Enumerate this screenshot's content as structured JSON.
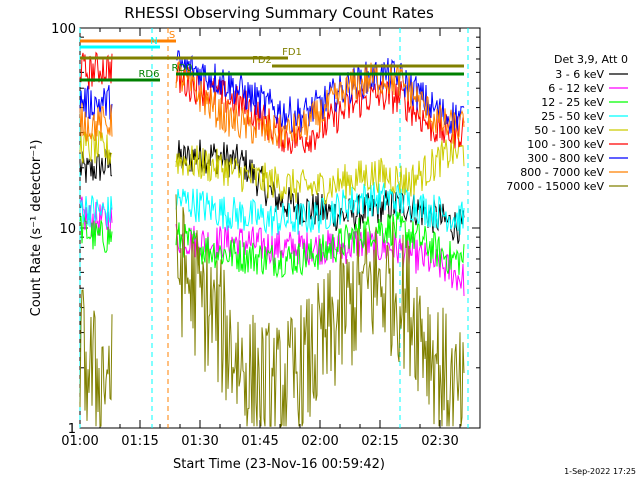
{
  "chart_data": {
    "type": "line",
    "title": "RHESSI Observing Summary Count Rates",
    "xlabel": "Start Time (23-Nov-16 00:59:42)",
    "ylabel": "Count Rate (s⁻¹ detector⁻¹)",
    "yscale": "log",
    "ylim": [
      1,
      100
    ],
    "xlim_minutes": [
      0,
      100
    ],
    "x_ticks": [
      "01:00",
      "01:15",
      "01:30",
      "01:45",
      "02:00",
      "02:15",
      "02:30"
    ],
    "y_ticks": [
      "1",
      "10",
      "100"
    ],
    "legend_header": "Det 3,9, Att 0",
    "legend_placement": "right",
    "series": [
      {
        "name": "3 - 6 keV",
        "color": "#000000",
        "points": [
          [
            0,
            20
          ],
          [
            2,
            19
          ],
          [
            4,
            20
          ],
          [
            8,
            21
          ],
          [
            24,
            23
          ],
          [
            26,
            22
          ],
          [
            29,
            23
          ],
          [
            33,
            23
          ],
          [
            37,
            22
          ],
          [
            41,
            21
          ],
          [
            45,
            17
          ],
          [
            49,
            14
          ],
          [
            53,
            13
          ],
          [
            57,
            12.5
          ],
          [
            62,
            12
          ],
          [
            66,
            11.5
          ],
          [
            70,
            12
          ],
          [
            74,
            12.5
          ],
          [
            78,
            13
          ],
          [
            82,
            13
          ],
          [
            86,
            12
          ],
          [
            90,
            11
          ],
          [
            93,
            10.5
          ],
          [
            96,
            10
          ]
        ]
      },
      {
        "name": "6 - 12 keV",
        "color": "#ff00ff",
        "points": [
          [
            0,
            12
          ],
          [
            2,
            11
          ],
          [
            4,
            11
          ],
          [
            8,
            11
          ],
          [
            24,
            9
          ],
          [
            30,
            8.5
          ],
          [
            36,
            8.5
          ],
          [
            42,
            8.5
          ],
          [
            48,
            8
          ],
          [
            54,
            8
          ],
          [
            60,
            8
          ],
          [
            66,
            8
          ],
          [
            70,
            8.5
          ],
          [
            74,
            8
          ],
          [
            78,
            8
          ],
          [
            82,
            7.5
          ],
          [
            86,
            7
          ],
          [
            90,
            6.5
          ],
          [
            93,
            6
          ],
          [
            96,
            5.5
          ]
        ]
      },
      {
        "name": "12 - 25 keV",
        "color": "#00ff00",
        "points": [
          [
            0,
            10
          ],
          [
            2,
            9.5
          ],
          [
            4,
            9
          ],
          [
            8,
            9
          ],
          [
            24,
            9
          ],
          [
            30,
            8
          ],
          [
            36,
            7.5
          ],
          [
            42,
            7.2
          ],
          [
            48,
            7
          ],
          [
            54,
            7
          ],
          [
            60,
            7.5
          ],
          [
            66,
            8.5
          ],
          [
            70,
            9.5
          ],
          [
            74,
            10
          ],
          [
            78,
            10
          ],
          [
            82,
            9.5
          ],
          [
            86,
            8.5
          ],
          [
            90,
            7.5
          ],
          [
            93,
            7
          ],
          [
            96,
            7
          ]
        ]
      },
      {
        "name": "25 - 50 keV",
        "color": "#00ffff",
        "points": [
          [
            0,
            13
          ],
          [
            2,
            12.5
          ],
          [
            4,
            12
          ],
          [
            8,
            12
          ],
          [
            24,
            14
          ],
          [
            30,
            13
          ],
          [
            36,
            12
          ],
          [
            42,
            11.5
          ],
          [
            48,
            11
          ],
          [
            54,
            11
          ],
          [
            60,
            11.5
          ],
          [
            66,
            13
          ],
          [
            70,
            14
          ],
          [
            74,
            14
          ],
          [
            78,
            14
          ],
          [
            82,
            13.5
          ],
          [
            86,
            12.5
          ],
          [
            90,
            12
          ],
          [
            93,
            11.5
          ],
          [
            96,
            11
          ]
        ]
      },
      {
        "name": "50 - 100 keV",
        "color": "#cccc00",
        "points": [
          [
            0,
            26
          ],
          [
            2,
            25
          ],
          [
            4,
            25
          ],
          [
            8,
            24
          ],
          [
            24,
            22
          ],
          [
            30,
            21
          ],
          [
            36,
            20
          ],
          [
            42,
            18
          ],
          [
            48,
            17
          ],
          [
            54,
            16
          ],
          [
            60,
            16
          ],
          [
            66,
            17
          ],
          [
            70,
            18
          ],
          [
            74,
            18.5
          ],
          [
            78,
            18
          ],
          [
            82,
            17
          ],
          [
            86,
            19
          ],
          [
            90,
            22
          ],
          [
            93,
            24
          ],
          [
            96,
            24
          ]
        ]
      },
      {
        "name": "100 - 300 keV",
        "color": "#ff0000",
        "points": [
          [
            0,
            63
          ],
          [
            2,
            60
          ],
          [
            4,
            62
          ],
          [
            8,
            64
          ],
          [
            24,
            56
          ],
          [
            30,
            50
          ],
          [
            36,
            45
          ],
          [
            42,
            40
          ],
          [
            48,
            32
          ],
          [
            52,
            28
          ],
          [
            56,
            28
          ],
          [
            60,
            31
          ],
          [
            64,
            36
          ],
          [
            68,
            41
          ],
          [
            72,
            45
          ],
          [
            76,
            46
          ],
          [
            80,
            45
          ],
          [
            84,
            38
          ],
          [
            88,
            32
          ],
          [
            92,
            30
          ],
          [
            96,
            31
          ]
        ]
      },
      {
        "name": "300 - 800 keV",
        "color": "#0000ff",
        "points": [
          [
            0,
            44
          ],
          [
            2,
            42
          ],
          [
            4,
            42
          ],
          [
            8,
            43
          ],
          [
            24,
            66
          ],
          [
            30,
            60
          ],
          [
            36,
            54
          ],
          [
            42,
            46
          ],
          [
            48,
            40
          ],
          [
            52,
            37
          ],
          [
            56,
            37
          ],
          [
            60,
            41
          ],
          [
            64,
            47
          ],
          [
            68,
            52
          ],
          [
            72,
            56
          ],
          [
            76,
            58
          ],
          [
            80,
            56
          ],
          [
            84,
            48
          ],
          [
            88,
            40
          ],
          [
            92,
            36
          ],
          [
            96,
            36
          ]
        ]
      },
      {
        "name": "800 - 7000 keV",
        "color": "#ff8000",
        "points": [
          [
            0,
            35
          ],
          [
            2,
            33
          ],
          [
            4,
            33
          ],
          [
            8,
            34
          ],
          [
            24,
            60
          ],
          [
            30,
            46
          ],
          [
            36,
            36
          ],
          [
            42,
            32
          ],
          [
            48,
            30
          ],
          [
            52,
            30
          ],
          [
            56,
            32
          ],
          [
            60,
            37
          ],
          [
            64,
            44
          ],
          [
            68,
            51
          ],
          [
            72,
            55
          ],
          [
            76,
            56
          ],
          [
            80,
            54
          ],
          [
            84,
            45
          ],
          [
            88,
            36
          ],
          [
            92,
            32
          ],
          [
            96,
            32
          ]
        ]
      },
      {
        "name": "7000 - 15000 keV",
        "color": "#808000",
        "points": [
          [
            0,
            2.5
          ],
          [
            2,
            2
          ],
          [
            4,
            1.8
          ],
          [
            8,
            2
          ],
          [
            24,
            7
          ],
          [
            27,
            5.5
          ],
          [
            30,
            4.5
          ],
          [
            34,
            3.5
          ],
          [
            38,
            2.5
          ],
          [
            42,
            1.8
          ],
          [
            46,
            1.6
          ],
          [
            50,
            1.5
          ],
          [
            54,
            1.8
          ],
          [
            58,
            2.2
          ],
          [
            62,
            2.8
          ],
          [
            66,
            3.8
          ],
          [
            70,
            4.8
          ],
          [
            74,
            5.3
          ],
          [
            78,
            5
          ],
          [
            82,
            4.2
          ],
          [
            86,
            3
          ],
          [
            90,
            2
          ],
          [
            93,
            1.5
          ],
          [
            96,
            1.3
          ]
        ]
      }
    ],
    "flags": [
      {
        "label": "S",
        "color": "#ff8000",
        "x_start": 0,
        "x_end": 24
      },
      {
        "label": "N",
        "color": "#00ffff",
        "x_start": 0,
        "x_end": 20
      },
      {
        "label": "FD1",
        "color": "#808000",
        "x_start": 0,
        "x_end": 52
      },
      {
        "label": "FD2",
        "color": "#808000",
        "x_start": 48,
        "x_end": 96
      },
      {
        "label": "RD0",
        "color": "#008000",
        "x_start": 24,
        "x_end": 96
      },
      {
        "label": "RD6",
        "color": "#008000",
        "x_start": 0,
        "x_end": 20
      }
    ],
    "vlines": [
      {
        "x": 0,
        "color": "#00ffff"
      },
      {
        "x": 18,
        "color": "#00ffff"
      },
      {
        "x": 22,
        "color": "#ff8000"
      },
      {
        "x": 80,
        "color": "#00ffff"
      },
      {
        "x": 97,
        "color": "#00ffff"
      }
    ]
  },
  "footer": {
    "timestamp": "1-Sep-2022 17:25"
  }
}
